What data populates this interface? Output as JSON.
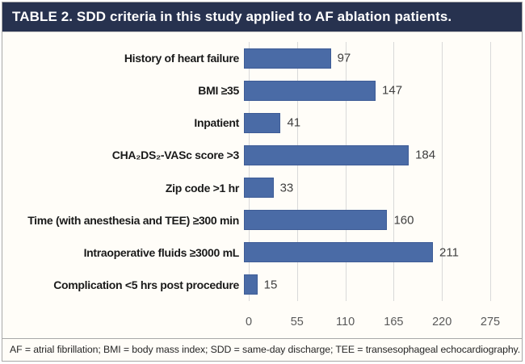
{
  "header": {
    "title": "TABLE 2. SDD criteria in this study applied to AF ablation patients."
  },
  "chart_data": {
    "type": "bar",
    "orientation": "horizontal",
    "title": "TABLE 2. SDD criteria in this study applied to AF ablation patients.",
    "categories": [
      "History of heart failure",
      "BMI ≥35",
      "Inpatient",
      "CHA₂DS₂-VASc score >3",
      "Zip code >1 hr",
      "Time (with anesthesia and TEE) ≥300 min",
      "Intraoperative fluids ≥3000 mL",
      "Complication <5 hrs post procedure"
    ],
    "values": [
      97,
      147,
      41,
      184,
      33,
      160,
      211,
      15
    ],
    "xlabel": "",
    "ylabel": "",
    "xticks": [
      0,
      55,
      110,
      165,
      220,
      275
    ],
    "xlim": [
      0,
      275
    ],
    "grid": true,
    "legend": false,
    "value_labels_shown": true
  },
  "footer": {
    "note": "AF = atrial fibrillation; BMI = body mass index; SDD = same-day discharge; TEE = transesophageal echocardiography."
  },
  "colors": {
    "header_bg": "#27324f",
    "header_text": "#ffffff",
    "bar_fill": "#4a6ba6",
    "bar_border": "#3e5c96",
    "gridline": "#d9d9d9",
    "value_label": "#3f3f3f",
    "category_label": "#1a1a1a",
    "tick_label": "#595959",
    "figure_border": "#a8a8a8",
    "figure_bg": "#fffdf8"
  }
}
